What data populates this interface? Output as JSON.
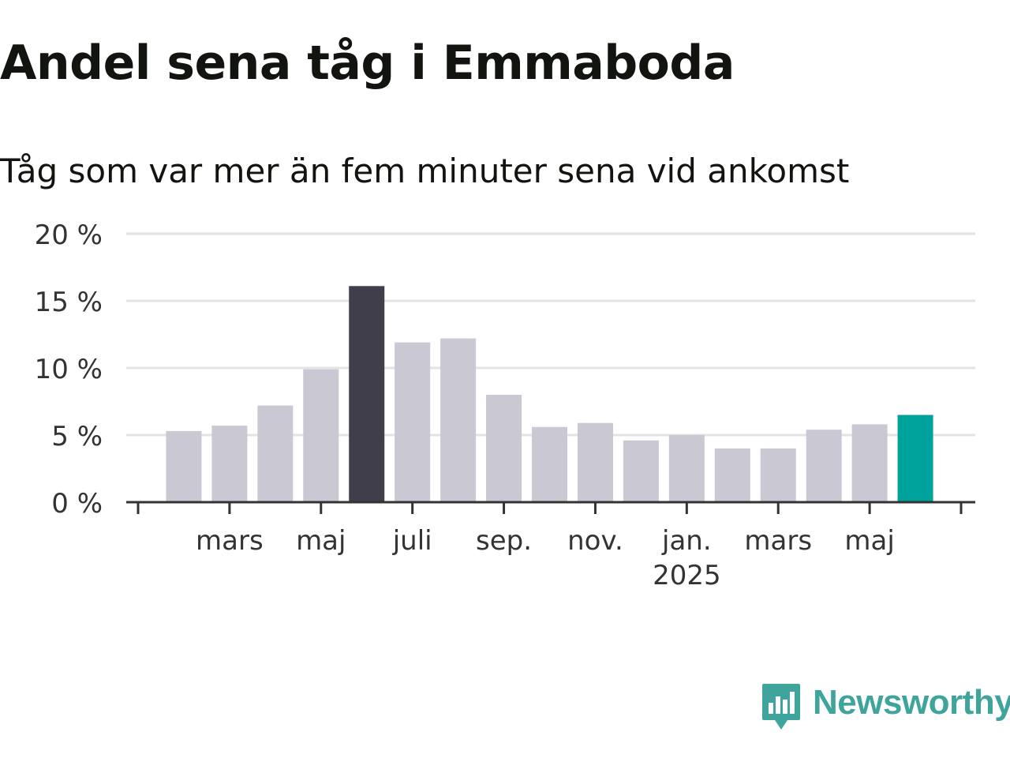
{
  "header": {
    "title": "Andel sena tåg i Emmaboda",
    "subtitle": "Tåg som var mer än fem minuter sena vid ankomst"
  },
  "logo": {
    "text": "Newsworthy",
    "icon": "bar-chart-speech-bubble-icon",
    "color": "#3fa49b"
  },
  "colors": {
    "bar_default": "#c9c8d3",
    "bar_peak": "#403e4a",
    "bar_latest": "#00a39b",
    "gridline": "#e3e3e3",
    "axis": "#333333",
    "text": "#121410",
    "tick_text": "#333333"
  },
  "chart_data": {
    "type": "bar",
    "title": "Andel sena tåg i Emmaboda",
    "subtitle": "Tåg som var mer än fem minuter sena vid ankomst",
    "categories": [
      "2024-02",
      "2024-03",
      "2024-04",
      "2024-05",
      "2024-06",
      "2024-07",
      "2024-08",
      "2024-09",
      "2024-10",
      "2024-11",
      "2024-12",
      "2025-01",
      "2025-02",
      "2025-03",
      "2025-04",
      "2025-05",
      "2025-06"
    ],
    "values": [
      5.3,
      5.7,
      7.2,
      9.9,
      16.1,
      11.9,
      12.2,
      8.0,
      5.6,
      5.9,
      4.6,
      5.0,
      4.0,
      4.0,
      5.4,
      5.8,
      6.5
    ],
    "highlight": {
      "peak_index": 4,
      "latest_index": 16
    },
    "ylim": [
      0,
      20
    ],
    "yticks": [
      {
        "value": 0,
        "label": "0 %"
      },
      {
        "value": 5,
        "label": "5 %"
      },
      {
        "value": 10,
        "label": "10 %"
      },
      {
        "value": 15,
        "label": "15 %"
      },
      {
        "value": 20,
        "label": "20 %"
      }
    ],
    "xticks": [
      {
        "category": "2024-03",
        "label": "mars"
      },
      {
        "category": "2024-05",
        "label": "maj"
      },
      {
        "category": "2024-07",
        "label": "juli"
      },
      {
        "category": "2024-09",
        "label": "sep."
      },
      {
        "category": "2024-11",
        "label": "nov."
      },
      {
        "category": "2025-01",
        "label": "jan.",
        "sublabel": "2025"
      },
      {
        "category": "2025-03",
        "label": "mars"
      },
      {
        "category": "2025-05",
        "label": "maj"
      }
    ],
    "grid": true,
    "legend": "none"
  }
}
